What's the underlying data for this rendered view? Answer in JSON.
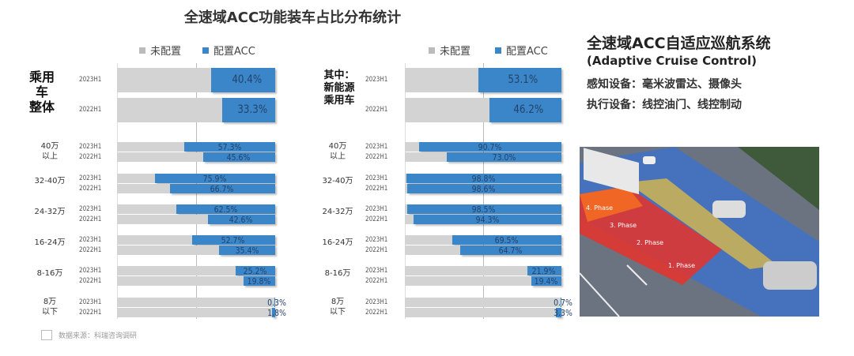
{
  "headline": "全速域ACC功能装车占比分布统计",
  "side": {
    "title": "全速域ACC自适应巡航系统",
    "subtitle": "(Adaptive Cruise Control)",
    "sensing": "感知设备：毫米波雷达、摄像头",
    "actuation": "执行设备：线控油门、线控制动",
    "image_labels": [
      "4. Phase",
      "3. Phase",
      "2. Phase",
      "1. Phase"
    ]
  },
  "source": "数据来源：科瑞咨询调研",
  "colors": {
    "not_configured": "#d3d3d3",
    "acc": "#3a86c8",
    "value_text": "#24426a"
  },
  "chart_data": [
    {
      "type": "bar",
      "orientation": "horizontal",
      "stacked_to": 100,
      "xlim": [
        0,
        100
      ],
      "legend": [
        "未配置",
        "配置ACC"
      ],
      "legend_position": "top",
      "groups": [
        {
          "label": "乘用车\n整体",
          "rows": [
            {
              "year": "2023H1",
              "value": 40.4
            },
            {
              "year": "2022H1",
              "value": 33.3
            }
          ]
        },
        {
          "label": "40万\n以上",
          "rows": [
            {
              "year": "2023H1",
              "value": 57.3
            },
            {
              "year": "2022H1",
              "value": 45.6
            }
          ]
        },
        {
          "label": "32-40万",
          "rows": [
            {
              "year": "2023H1",
              "value": 75.9
            },
            {
              "year": "2022H1",
              "value": 66.7
            }
          ]
        },
        {
          "label": "24-32万",
          "rows": [
            {
              "year": "2023H1",
              "value": 62.5
            },
            {
              "year": "2022H1",
              "value": 42.6
            }
          ]
        },
        {
          "label": "16-24万",
          "rows": [
            {
              "year": "2023H1",
              "value": 52.7
            },
            {
              "year": "2022H1",
              "value": 35.4
            }
          ]
        },
        {
          "label": "8-16万",
          "rows": [
            {
              "year": "2023H1",
              "value": 25.2
            },
            {
              "year": "2022H1",
              "value": 19.8
            }
          ]
        },
        {
          "label": "8万\n以下",
          "rows": [
            {
              "year": "2023H1",
              "value": 0.3
            },
            {
              "year": "2022H1",
              "value": 1.8
            }
          ]
        }
      ]
    },
    {
      "type": "bar",
      "orientation": "horizontal",
      "stacked_to": 100,
      "xlim": [
        0,
        100
      ],
      "legend": [
        "未配置",
        "配置ACC"
      ],
      "legend_position": "top",
      "groups": [
        {
          "label": "其中：\n新能源\n乘用车",
          "rows": [
            {
              "year": "2023H1",
              "value": 53.1
            },
            {
              "year": "2022H1",
              "value": 46.2
            }
          ]
        },
        {
          "label": "40万\n以上",
          "rows": [
            {
              "year": "2023H1",
              "value": 90.7
            },
            {
              "year": "2022H1",
              "value": 73.0
            }
          ]
        },
        {
          "label": "32-40万",
          "rows": [
            {
              "year": "2023H1",
              "value": 98.8
            },
            {
              "year": "2022H1",
              "value": 98.6
            }
          ]
        },
        {
          "label": "24-32万",
          "rows": [
            {
              "year": "2023H1",
              "value": 98.5
            },
            {
              "year": "2022H1",
              "value": 94.3
            }
          ]
        },
        {
          "label": "16-24万",
          "rows": [
            {
              "year": "2023H1",
              "value": 69.5
            },
            {
              "year": "2022H1",
              "value": 64.7
            }
          ]
        },
        {
          "label": "8-16万",
          "rows": [
            {
              "year": "2023H1",
              "value": 21.9
            },
            {
              "year": "2022H1",
              "value": 19.4
            }
          ]
        },
        {
          "label": "8万\n以下",
          "rows": [
            {
              "year": "2023H1",
              "value": 0.7
            },
            {
              "year": "2022H1",
              "value": 3.3
            }
          ]
        }
      ]
    }
  ]
}
